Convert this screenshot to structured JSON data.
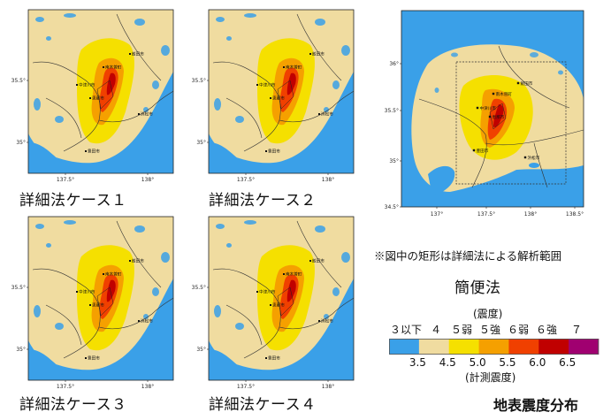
{
  "panels": [
    {
      "caption": "詳細法ケース１",
      "lat_labels": [
        "35.5°",
        "35°"
      ],
      "lon_labels": [
        "137.5°",
        "138°"
      ]
    },
    {
      "caption": "詳細法ケース２",
      "lat_labels": [
        "35.5°",
        "35°"
      ],
      "lon_labels": [
        "137.5°",
        "138°"
      ]
    },
    {
      "caption": "詳細法ケース３",
      "lat_labels": [
        "35.5°",
        "35°"
      ],
      "lon_labels": [
        "137.5°",
        "138°"
      ]
    },
    {
      "caption": "詳細法ケース４",
      "lat_labels": [
        "35.5°",
        "35°"
      ],
      "lon_labels": [
        "137.5°",
        "138°"
      ]
    }
  ],
  "simple_panel": {
    "caption": "簡便法",
    "lat_labels": [
      "36°",
      "35.5°",
      "35°",
      "34.5°"
    ],
    "lon_labels": [
      "137°",
      "137.5°",
      "138°",
      "138.5°"
    ]
  },
  "note": "※図中の矩形は詳細法による解析範囲",
  "cities": [
    "南木曽町",
    "中津川市",
    "恵那市",
    "飯田市",
    "豊田市",
    "浜松市"
  ],
  "legend": {
    "header": "(震度)",
    "intensity_labels": [
      "３以下",
      "４",
      "５弱",
      "５強",
      "６弱",
      "６強",
      "７"
    ],
    "values": [
      "3.5",
      "4.5",
      "5.0",
      "5.5",
      "6.0",
      "6.5"
    ],
    "footer": "(計測震度)",
    "colors": [
      "#3aa0e8",
      "#f0dca0",
      "#f5e000",
      "#f5a000",
      "#f04000",
      "#c00000",
      "#a00070"
    ]
  },
  "title": "地表震度分布",
  "colors": {
    "sea": "#3aa0e8",
    "land_low": "#f0dca0",
    "i5l": "#f5e000",
    "i5u": "#f5a000",
    "i6l": "#f04000",
    "i6u": "#c00000"
  }
}
